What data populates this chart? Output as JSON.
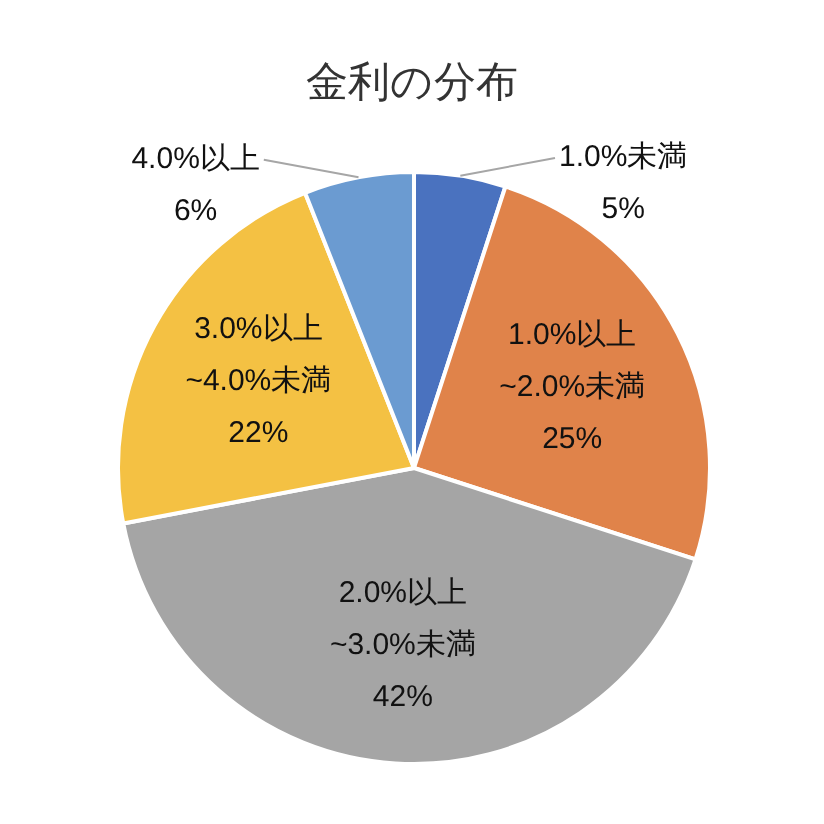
{
  "chart_data": {
    "type": "pie",
    "title": "金利の分布",
    "categories": [
      "1.0%未満",
      "1.0%以上~2.0%未満",
      "2.0%以上~3.0%未満",
      "3.0%以上~4.0%未満",
      "4.0%以上"
    ],
    "values": [
      5,
      25,
      42,
      22,
      6
    ],
    "colors": [
      "#4a72bf",
      "#e0834a",
      "#a5a5a5",
      "#f4c143",
      "#6b9bd1"
    ],
    "value_labels": [
      "5%",
      "25%",
      "42%",
      "22%",
      "6%"
    ]
  }
}
